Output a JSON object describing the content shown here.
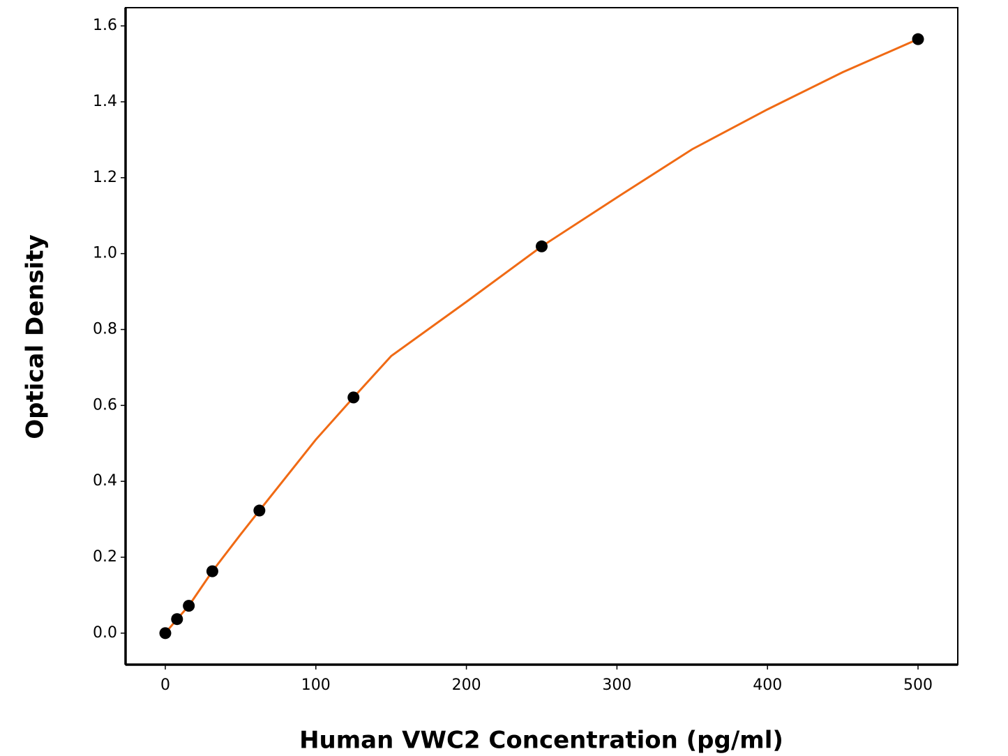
{
  "chart_data": {
    "type": "scatter",
    "x_label": "Human VWC2 Concentration (pg/ml)",
    "y_label": "Optical Density",
    "series": [
      {
        "kind": "line",
        "color": "#f06a14",
        "x": [
          0,
          7.8,
          15.6,
          31.25,
          50,
          62.5,
          100,
          125,
          150,
          200,
          250,
          300,
          350,
          400,
          450,
          500
        ],
        "values": [
          0,
          0.037,
          0.072,
          0.163,
          0.26,
          0.323,
          0.51,
          0.621,
          0.73,
          0.873,
          1.019,
          1.148,
          1.275,
          1.38,
          1.478,
          1.565
        ]
      },
      {
        "kind": "points",
        "color": "#000000",
        "x": [
          0,
          7.8,
          15.6,
          31.25,
          62.5,
          125,
          250,
          500
        ],
        "values": [
          0,
          0.037,
          0.072,
          0.163,
          0.323,
          0.621,
          1.019,
          1.565
        ]
      }
    ],
    "xlim": [
      -26.4,
      526.4
    ],
    "xticks": [
      0,
      100,
      200,
      300,
      400,
      500
    ],
    "ylim": [
      -0.083,
      1.648
    ],
    "yticks": [
      {
        "value": 0,
        "label": "0.0"
      },
      0.2,
      0.4,
      0.6,
      0.8,
      {
        "value": 1,
        "label": "1.0"
      },
      1.2,
      1.4,
      1.6
    ]
  }
}
